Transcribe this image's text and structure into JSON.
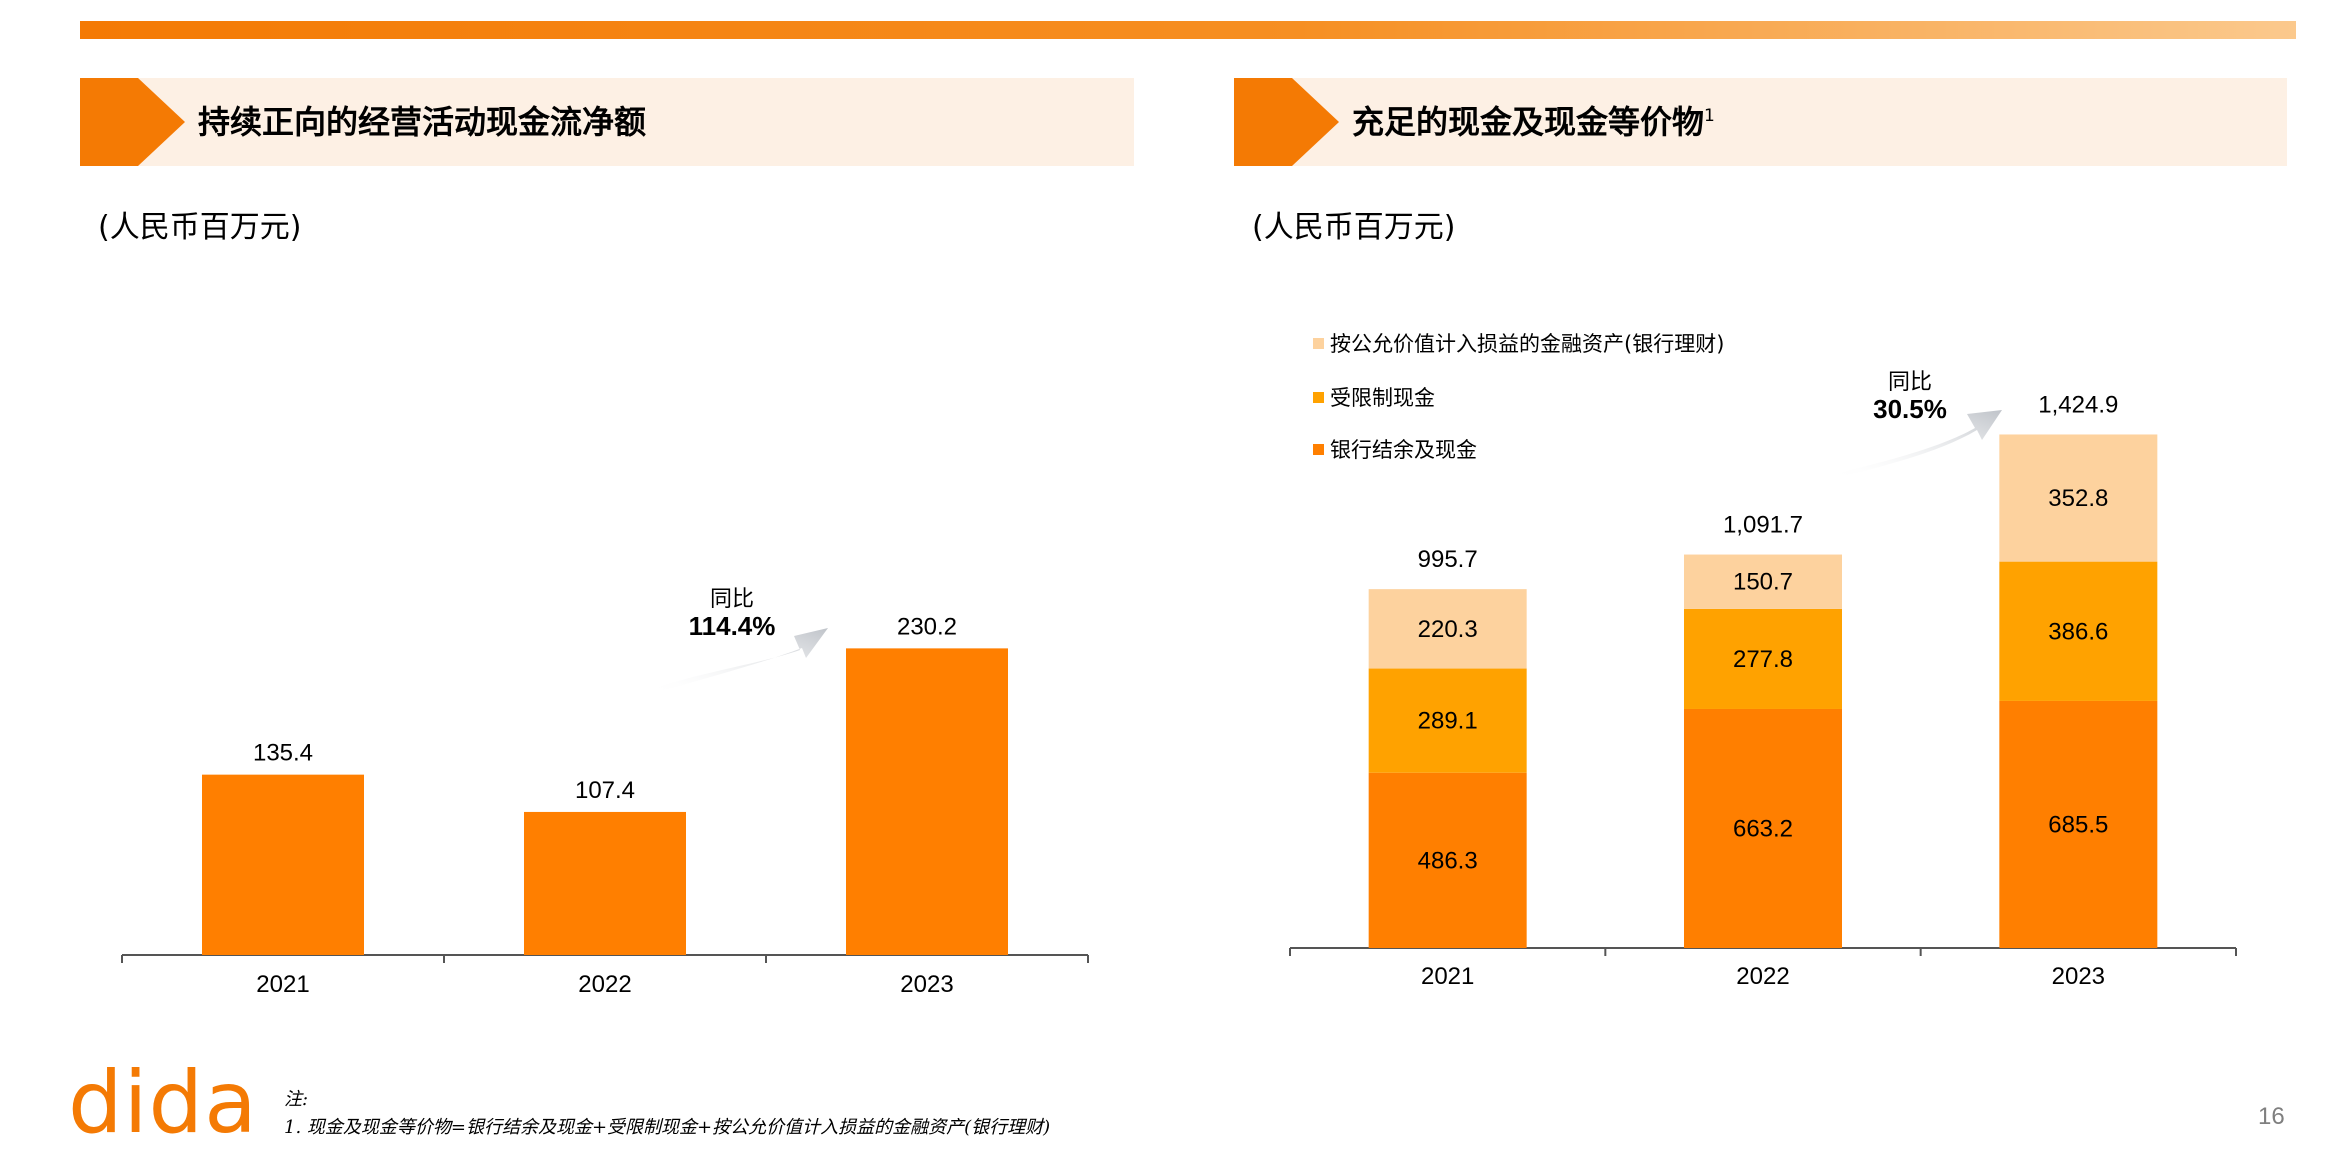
{
  "colors": {
    "accent": "#f47a04",
    "header_bg": "#fdf0e4",
    "bank_cash": "#ff7f00",
    "restricted_cash": "#ffa200",
    "fvtpl": "#fdd29e"
  },
  "left_panel": {
    "title": "持续正向的经营活动现金流净额",
    "unit": "(人民币百万元)",
    "yoy_label": "同比",
    "yoy_value": "114.4%"
  },
  "right_panel": {
    "title": "充足的现金及现金等价物",
    "title_sup": "1",
    "unit": "(人民币百万元)",
    "yoy_label": "同比",
    "yoy_value": "30.5%"
  },
  "chart_data": [
    {
      "type": "bar",
      "title": "持续正向的经营活动现金流净额",
      "ylabel": "(人民币百万元)",
      "categories": [
        "2021",
        "2022",
        "2023"
      ],
      "values": [
        135.4,
        107.4,
        230.2
      ],
      "value_labels": [
        "135.4",
        "107.4",
        "230.2"
      ],
      "ylim": [
        0,
        250
      ],
      "grid": false,
      "annotation": "同比 114.4%"
    },
    {
      "type": "bar",
      "stacked": true,
      "title": "充足的现金及现金等价物",
      "ylabel": "(人民币百万元)",
      "categories": [
        "2021",
        "2022",
        "2023"
      ],
      "series": [
        {
          "name": "银行结余及现金",
          "values": [
            486.3,
            663.2,
            685.5
          ],
          "labels": [
            "486.3",
            "663.2",
            "685.5"
          ]
        },
        {
          "name": "受限制现金",
          "values": [
            289.1,
            277.8,
            386.6
          ],
          "labels": [
            "289.1",
            "277.8",
            "386.6"
          ]
        },
        {
          "name": "按公允价值计入损益的金融资产(银行理财)",
          "values": [
            220.3,
            150.7,
            352.8
          ],
          "labels": [
            "220.3",
            "150.7",
            "352.8"
          ]
        }
      ],
      "totals": [
        "995.7",
        "1,091.7",
        "1,424.9"
      ],
      "ylim": [
        0,
        1550
      ],
      "grid": false,
      "legend_position": "top-left",
      "annotation": "同比 30.5%"
    }
  ],
  "footer": {
    "logo": "dida",
    "note_title": "注:",
    "note_line": "1. 现金及现金等价物=银行结余及现金+受限制现金+按公允价值计入损益的金融资产(银行理财)",
    "page_number": "16"
  }
}
